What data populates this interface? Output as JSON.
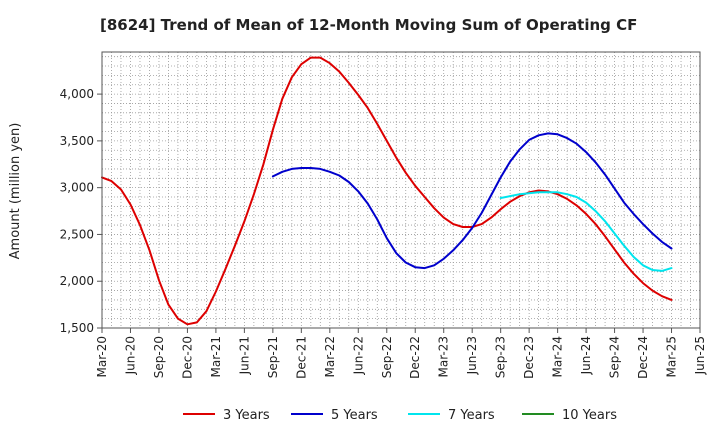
{
  "chart_data": {
    "type": "line",
    "title": "[8624]  Trend of Mean of 12-Month Moving Sum of Operating CF",
    "xlabel": "",
    "ylabel": "Amount (million yen)",
    "ylim": [
      1500,
      4450
    ],
    "yticks": [
      1500,
      2000,
      2500,
      3000,
      3500,
      4000
    ],
    "ytick_labels": [
      "1,500",
      "2,000",
      "2,500",
      "3,000",
      "3,500",
      "4,000"
    ],
    "xlim": [
      0,
      63
    ],
    "xtick_positions": [
      0,
      3,
      6,
      9,
      12,
      15,
      18,
      21,
      24,
      27,
      30,
      33,
      36,
      39,
      42,
      45,
      48,
      51,
      54,
      57,
      60,
      63
    ],
    "xtick_labels": [
      "Mar-20",
      "Jun-20",
      "Sep-20",
      "Dec-20",
      "Mar-21",
      "Jun-21",
      "Sep-21",
      "Dec-21",
      "Mar-22",
      "Jun-22",
      "Sep-22",
      "Dec-22",
      "Mar-23",
      "Jun-23",
      "Sep-23",
      "Dec-23",
      "Mar-24",
      "Jun-24",
      "Sep-24",
      "Dec-24",
      "Mar-25",
      "Jun-25"
    ],
    "grid": true,
    "legend_position": "bottom",
    "series": [
      {
        "name": "3 Years",
        "color": "#dd0000",
        "x": [
          0,
          1,
          2,
          3,
          4,
          5,
          6,
          7,
          8,
          9,
          10,
          11,
          12,
          13,
          14,
          15,
          16,
          17,
          18,
          19,
          20,
          21,
          22,
          23,
          24,
          25,
          26,
          27,
          28,
          29,
          30,
          31,
          32,
          33,
          34,
          35,
          36,
          37,
          38,
          39,
          40,
          41,
          42,
          43,
          44,
          45,
          46,
          47,
          48,
          49,
          50,
          51,
          52,
          53,
          54,
          55,
          56,
          57,
          58,
          59,
          60
        ],
        "values": [
          3110,
          3070,
          2980,
          2820,
          2600,
          2330,
          2010,
          1750,
          1600,
          1540,
          1560,
          1680,
          1890,
          2130,
          2380,
          2640,
          2930,
          3250,
          3620,
          3950,
          4180,
          4320,
          4390,
          4390,
          4330,
          4240,
          4120,
          3990,
          3850,
          3680,
          3500,
          3320,
          3160,
          3020,
          2900,
          2780,
          2680,
          2610,
          2580,
          2580,
          2610,
          2680,
          2770,
          2850,
          2910,
          2950,
          2970,
          2960,
          2930,
          2880,
          2810,
          2720,
          2610,
          2480,
          2340,
          2200,
          2080,
          1980,
          1900,
          1840,
          1800
        ]
      },
      {
        "name": "5 Years",
        "color": "#0000cc",
        "x": [
          18,
          19,
          20,
          21,
          22,
          23,
          24,
          25,
          26,
          27,
          28,
          29,
          30,
          31,
          32,
          33,
          34,
          35,
          36,
          37,
          38,
          39,
          40,
          41,
          42,
          43,
          44,
          45,
          46,
          47,
          48,
          49,
          50,
          51,
          52,
          53,
          54,
          55,
          56,
          57,
          58,
          59,
          60
        ],
        "values": [
          3120,
          3170,
          3200,
          3210,
          3210,
          3200,
          3170,
          3130,
          3060,
          2960,
          2830,
          2660,
          2460,
          2300,
          2200,
          2150,
          2140,
          2170,
          2240,
          2330,
          2440,
          2570,
          2730,
          2920,
          3110,
          3280,
          3410,
          3510,
          3560,
          3580,
          3570,
          3530,
          3470,
          3380,
          3270,
          3140,
          2990,
          2840,
          2720,
          2610,
          2510,
          2420,
          2350
        ]
      },
      {
        "name": "7 Years",
        "color": "#00e5ee",
        "x": [
          42,
          43,
          44,
          45,
          46,
          47,
          48,
          49,
          50,
          51,
          52,
          53,
          54,
          55,
          56,
          57,
          58,
          59,
          60
        ],
        "values": [
          2890,
          2910,
          2930,
          2940,
          2950,
          2950,
          2950,
          2930,
          2900,
          2840,
          2750,
          2640,
          2510,
          2380,
          2260,
          2170,
          2120,
          2110,
          2140
        ]
      },
      {
        "name": "10 Years",
        "color": "#228b22",
        "x": [],
        "values": []
      }
    ]
  }
}
